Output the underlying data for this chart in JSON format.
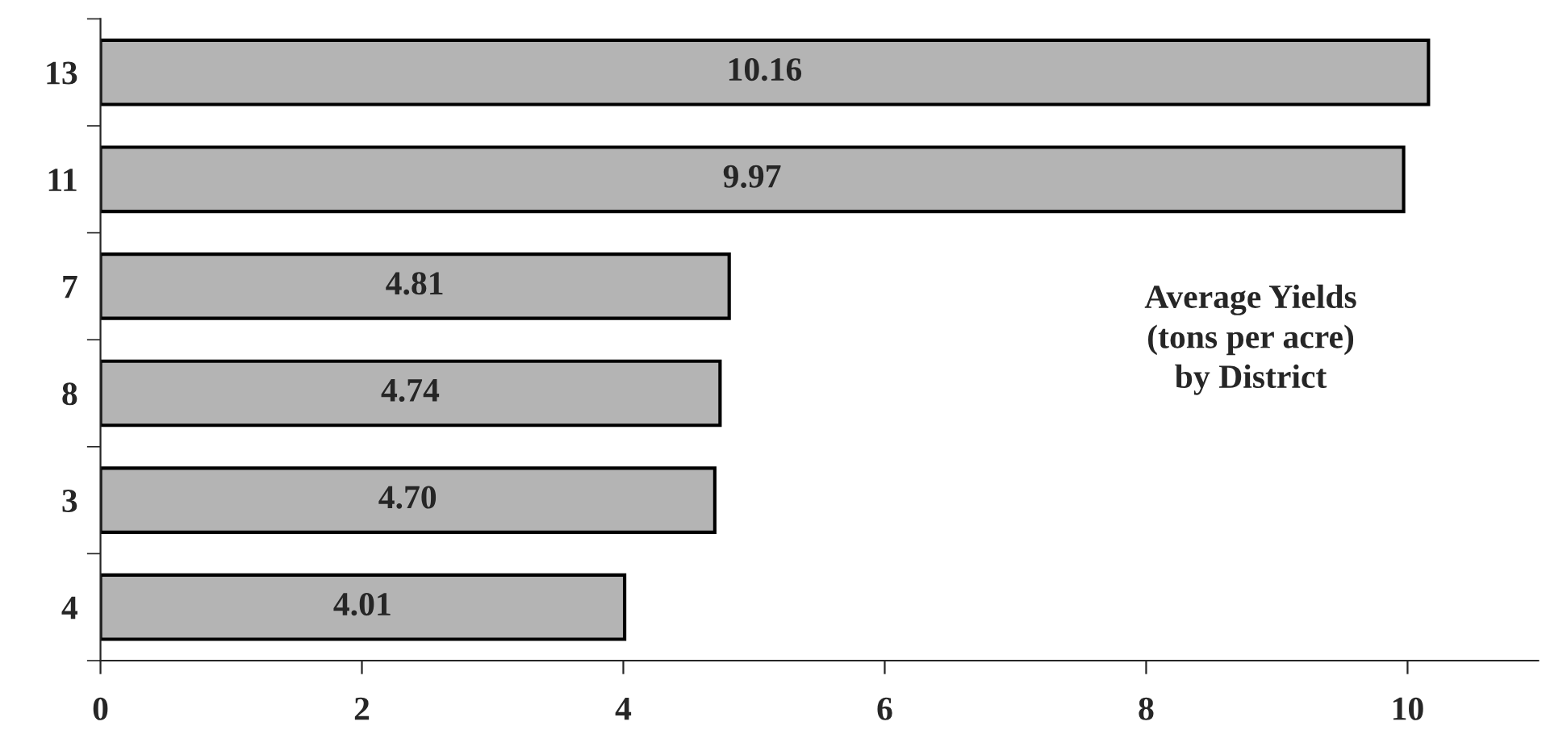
{
  "chart_data": {
    "type": "bar",
    "orientation": "horizontal",
    "title": "Average Yields\n(tons per acre)\nby District",
    "categories": [
      "13",
      "11",
      "7",
      "8",
      "3",
      "4"
    ],
    "values": [
      10.16,
      9.97,
      4.81,
      4.74,
      4.7,
      4.01
    ],
    "value_labels": [
      "10.16",
      "9.97",
      "4.81",
      "4.74",
      "4.70",
      "4.01"
    ],
    "color": "#b4b4b4",
    "xlim": [
      0,
      11
    ],
    "xticks": [
      0,
      2,
      4,
      6,
      8,
      10
    ],
    "grid": false,
    "legend": false
  }
}
